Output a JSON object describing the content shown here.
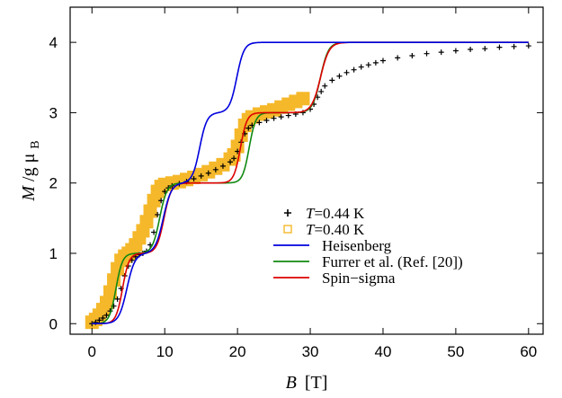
{
  "chart_data": {
    "type": "line",
    "xlabel": {
      "var": "B",
      "unit": "[T]"
    },
    "ylabel": {
      "var": "M",
      "sep": "/g",
      "mu": "μ",
      "sub": "B"
    },
    "xlim": [
      -3,
      62
    ],
    "ylim": [
      -0.15,
      4.5
    ],
    "xticks": [
      0,
      10,
      20,
      30,
      40,
      50,
      60
    ],
    "yticks": [
      0,
      1,
      2,
      3,
      4
    ],
    "grid": false,
    "legend_position": "lower-right",
    "legend": [
      {
        "italic": "T",
        "rest": "=0.44 K"
      },
      {
        "italic": "T",
        "rest": "=0.40 K"
      },
      {
        "text": "Heisenberg"
      },
      {
        "text": "Furrer et al. (Ref. [20])"
      },
      {
        "text": "Spin−sigma"
      }
    ],
    "series": [
      {
        "kind": "markers",
        "marker": "plus",
        "color": "#000000",
        "points": [
          [
            0,
            0
          ],
          [
            0.5,
            0.02
          ],
          [
            1,
            0.05
          ],
          [
            1.5,
            0.08
          ],
          [
            2,
            0.12
          ],
          [
            2.5,
            0.18
          ],
          [
            3,
            0.25
          ],
          [
            3.5,
            0.35
          ],
          [
            4,
            0.5
          ],
          [
            4.5,
            0.68
          ],
          [
            5,
            0.82
          ],
          [
            5.5,
            0.9
          ],
          [
            6,
            0.95
          ],
          [
            6.5,
            0.98
          ],
          [
            7,
            1.0
          ],
          [
            7.5,
            1.03
          ],
          [
            8,
            1.12
          ],
          [
            8.5,
            1.3
          ],
          [
            9,
            1.55
          ],
          [
            9.5,
            1.75
          ],
          [
            10,
            1.88
          ],
          [
            10.5,
            1.93
          ],
          [
            11,
            1.96
          ],
          [
            12,
            1.99
          ],
          [
            13,
            2.02
          ],
          [
            14,
            2.06
          ],
          [
            15,
            2.1
          ],
          [
            16,
            2.14
          ],
          [
            17,
            2.19
          ],
          [
            18,
            2.24
          ],
          [
            19,
            2.3
          ],
          [
            19.5,
            2.35
          ],
          [
            20,
            2.45
          ],
          [
            20.5,
            2.58
          ],
          [
            21,
            2.7
          ],
          [
            21.5,
            2.78
          ],
          [
            22,
            2.82
          ],
          [
            23,
            2.86
          ],
          [
            24,
            2.89
          ],
          [
            25,
            2.92
          ],
          [
            26,
            2.94
          ],
          [
            27,
            2.96
          ],
          [
            28,
            2.98
          ],
          [
            29,
            3.0
          ],
          [
            30,
            3.05
          ],
          [
            30.5,
            3.12
          ],
          [
            31,
            3.22
          ],
          [
            31.5,
            3.3
          ],
          [
            32,
            3.38
          ],
          [
            33,
            3.46
          ],
          [
            34,
            3.52
          ],
          [
            35,
            3.57
          ],
          [
            36,
            3.61
          ],
          [
            37,
            3.65
          ],
          [
            38,
            3.68
          ],
          [
            39,
            3.71
          ],
          [
            40,
            3.74
          ],
          [
            42,
            3.78
          ],
          [
            44,
            3.81
          ],
          [
            46,
            3.84
          ],
          [
            48,
            3.86
          ],
          [
            50,
            3.88
          ],
          [
            52,
            3.9
          ],
          [
            54,
            3.91
          ],
          [
            56,
            3.93
          ],
          [
            58,
            3.94
          ],
          [
            60,
            3.95
          ]
        ]
      },
      {
        "kind": "markers",
        "marker": "square",
        "color": "#f5b82a",
        "points": [
          [
            0,
            0.02
          ],
          [
            0.5,
            0.06
          ],
          [
            1,
            0.12
          ],
          [
            1.5,
            0.2
          ],
          [
            2,
            0.3
          ],
          [
            2.5,
            0.45
          ],
          [
            3,
            0.62
          ],
          [
            3.5,
            0.78
          ],
          [
            4,
            0.9
          ],
          [
            4.5,
            0.96
          ],
          [
            5,
            1.0
          ],
          [
            5.5,
            1.05
          ],
          [
            6,
            1.12
          ],
          [
            6.5,
            1.22
          ],
          [
            7,
            1.32
          ],
          [
            7.5,
            1.45
          ],
          [
            8,
            1.6
          ],
          [
            8.5,
            1.75
          ],
          [
            9,
            1.88
          ],
          [
            9.5,
            1.95
          ],
          [
            10,
            1.98
          ],
          [
            11,
            2.0
          ],
          [
            12,
            2.02
          ],
          [
            13,
            2.05
          ],
          [
            14,
            2.08
          ],
          [
            15,
            2.12
          ],
          [
            16,
            2.16
          ],
          [
            17,
            2.21
          ],
          [
            18,
            2.26
          ],
          [
            19,
            2.34
          ],
          [
            19.5,
            2.4
          ],
          [
            20,
            2.52
          ],
          [
            20.5,
            2.68
          ],
          [
            21,
            2.82
          ],
          [
            21.5,
            2.9
          ],
          [
            22,
            2.94
          ],
          [
            23,
            2.98
          ],
          [
            24,
            3.01
          ],
          [
            25,
            3.04
          ],
          [
            26,
            3.08
          ],
          [
            27,
            3.12
          ],
          [
            28,
            3.16
          ],
          [
            29,
            3.2
          ]
        ]
      },
      {
        "kind": "line",
        "color": "#0000dd",
        "steps": [
          [
            4.8,
            0.55
          ],
          [
            9.8,
            0.55
          ],
          [
            14.8,
            0.5
          ],
          [
            19.9,
            0.5
          ]
        ]
      },
      {
        "kind": "line",
        "color": "#118811",
        "steps": [
          [
            3.3,
            0.45
          ],
          [
            9.3,
            0.5
          ],
          [
            21.6,
            0.45
          ],
          [
            31.4,
            0.55
          ]
        ]
      },
      {
        "kind": "line",
        "color": "#dd0000",
        "steps": [
          [
            4.2,
            0.45
          ],
          [
            9.9,
            0.5
          ],
          [
            20.4,
            0.45
          ],
          [
            31.4,
            0.6
          ]
        ]
      }
    ]
  }
}
